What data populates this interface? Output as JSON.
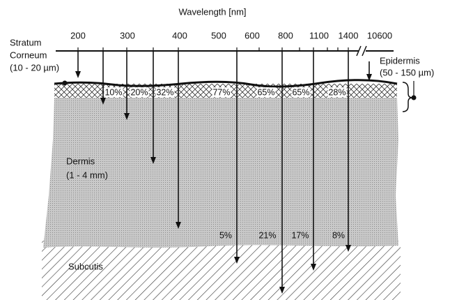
{
  "header": {
    "title": "Wavelength [nm]"
  },
  "wavelength_ticks": [
    "200",
    "300",
    "400",
    "500",
    "600",
    "800",
    "1100",
    "1400",
    "10600"
  ],
  "layers": {
    "stratum_corneum": [
      "Stratum",
      "Corneum",
      "(10 - 20 µm)"
    ],
    "epidermis": [
      "Epidermis",
      "(50 - 150 µm)"
    ],
    "dermis": [
      "Dermis",
      "(1 - 4 mm)"
    ],
    "subcutis": [
      "Subcutis"
    ]
  },
  "epidermis_percentages": [
    "10%",
    "20%",
    "32%",
    "77%",
    "65%",
    "65%",
    "28%"
  ],
  "dermis_percentages": [
    "5%",
    "21%",
    "17%",
    "8%"
  ]
}
